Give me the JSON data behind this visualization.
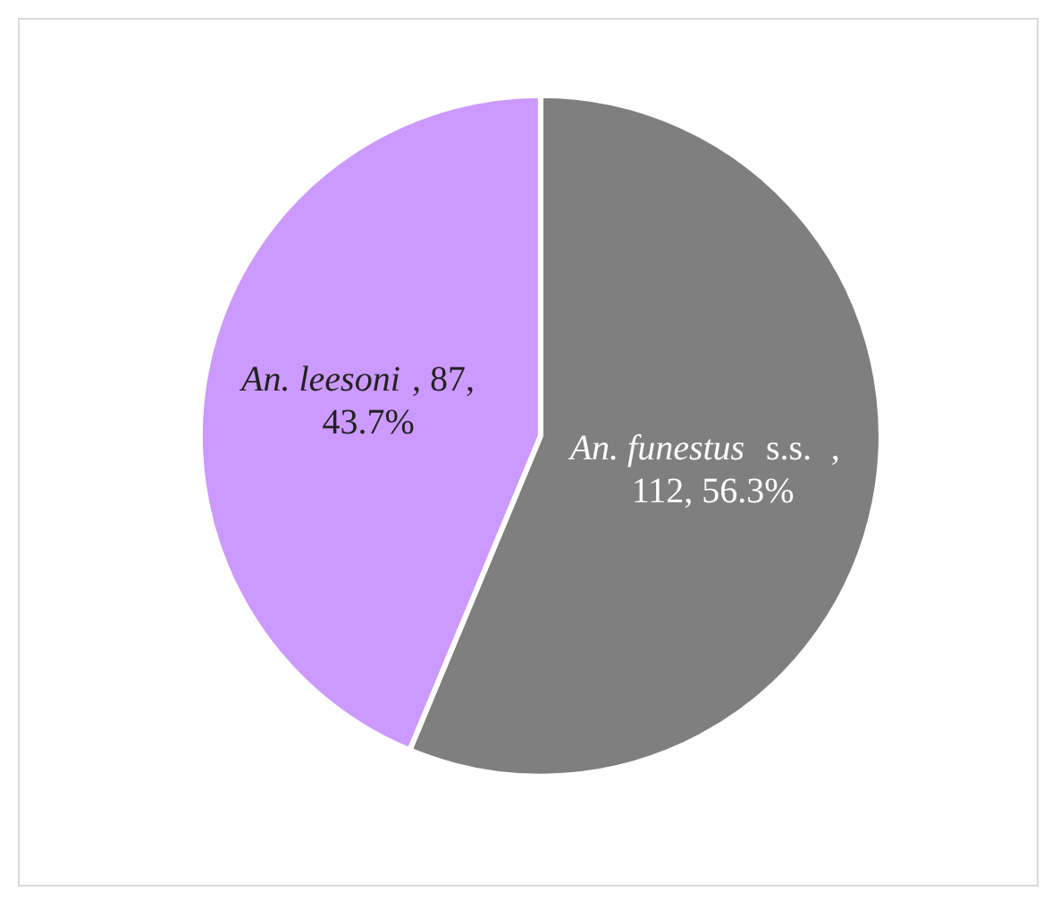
{
  "chart_data": {
    "type": "pie",
    "categories": [
      "An. funestus s.s.",
      "An. leesoni"
    ],
    "values": [
      112,
      87
    ],
    "colors": [
      "#7f7f7f",
      "#cc99ff"
    ],
    "value_labels": [
      ", 112, 56.3%",
      ", 87, 43.7%"
    ],
    "legend": false
  }
}
